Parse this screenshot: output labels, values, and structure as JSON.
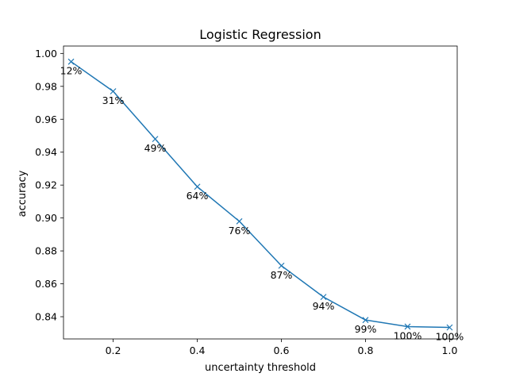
{
  "chart_data": {
    "type": "line",
    "title": "Logistic Regression",
    "xlabel": "uncertainty threshold",
    "ylabel": "accuracy",
    "xlim": [
      0.082,
      1.018
    ],
    "ylim": [
      0.8265,
      1.0045
    ],
    "xticks": [
      0.2,
      0.4,
      0.6,
      0.8,
      1.0
    ],
    "xtick_labels": [
      "0.2",
      "0.4",
      "0.6",
      "0.8",
      "1.0"
    ],
    "yticks": [
      0.84,
      0.86,
      0.88,
      0.9,
      0.92,
      0.94,
      0.96,
      0.98,
      1.0
    ],
    "ytick_labels": [
      "0.84",
      "0.86",
      "0.88",
      "0.90",
      "0.92",
      "0.94",
      "0.96",
      "0.98",
      "1.00"
    ],
    "grid": false,
    "marker": "x",
    "color": "#1f77b4",
    "series": [
      {
        "x": [
          0.1,
          0.2,
          0.3,
          0.4,
          0.5,
          0.6,
          0.7,
          0.8,
          0.9,
          1.0
        ],
        "y": [
          0.995,
          0.977,
          0.948,
          0.919,
          0.898,
          0.871,
          0.852,
          0.838,
          0.834,
          0.8335
        ],
        "point_labels": [
          "12%",
          "31%",
          "49%",
          "64%",
          "76%",
          "87%",
          "94%",
          "99%",
          "100%",
          "100%"
        ]
      }
    ]
  }
}
